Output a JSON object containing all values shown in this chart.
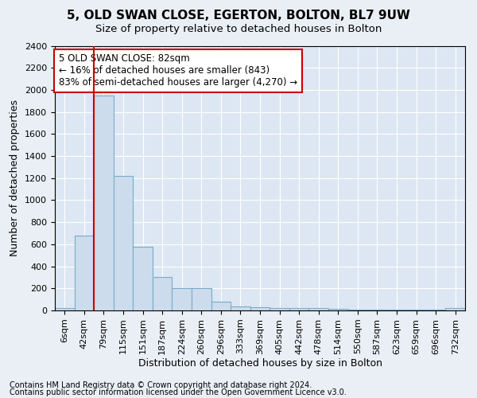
{
  "title": "5, OLD SWAN CLOSE, EGERTON, BOLTON, BL7 9UW",
  "subtitle": "Size of property relative to detached houses in Bolton",
  "xlabel": "Distribution of detached houses by size in Bolton",
  "ylabel": "Number of detached properties",
  "annotation_text": "5 OLD SWAN CLOSE: 82sqm\n← 16% of detached houses are smaller (843)\n83% of semi-detached houses are larger (4,270) →",
  "footer_line1": "Contains HM Land Registry data © Crown copyright and database right 2024.",
  "footer_line2": "Contains public sector information licensed under the Open Government Licence v3.0.",
  "property_bin_index": 2,
  "bar_values": [
    20,
    680,
    1950,
    1220,
    580,
    300,
    200,
    200,
    80,
    35,
    30,
    25,
    25,
    20,
    15,
    10,
    10,
    10,
    5,
    5,
    20
  ],
  "bin_labels": [
    "6sqm",
    "42sqm",
    "79sqm",
    "115sqm",
    "151sqm",
    "187sqm",
    "224sqm",
    "260sqm",
    "296sqm",
    "333sqm",
    "369sqm",
    "405sqm",
    "442sqm",
    "478sqm",
    "514sqm",
    "550sqm",
    "587sqm",
    "623sqm",
    "659sqm",
    "696sqm",
    "732sqm"
  ],
  "bar_color": "#ccdcec",
  "bar_edge_color": "#7aaac8",
  "red_line_color": "#cc0000",
  "annotation_box_color": "#cc0000",
  "background_color": "#eaeff5",
  "plot_bg_color": "#dce7f3",
  "ylim": [
    0,
    2400
  ],
  "yticks": [
    0,
    200,
    400,
    600,
    800,
    1000,
    1200,
    1400,
    1600,
    1800,
    2000,
    2200,
    2400
  ],
  "title_fontsize": 11,
  "subtitle_fontsize": 9.5,
  "xlabel_fontsize": 9,
  "ylabel_fontsize": 9,
  "tick_fontsize": 8,
  "annotation_fontsize": 8.5,
  "footer_fontsize": 7
}
